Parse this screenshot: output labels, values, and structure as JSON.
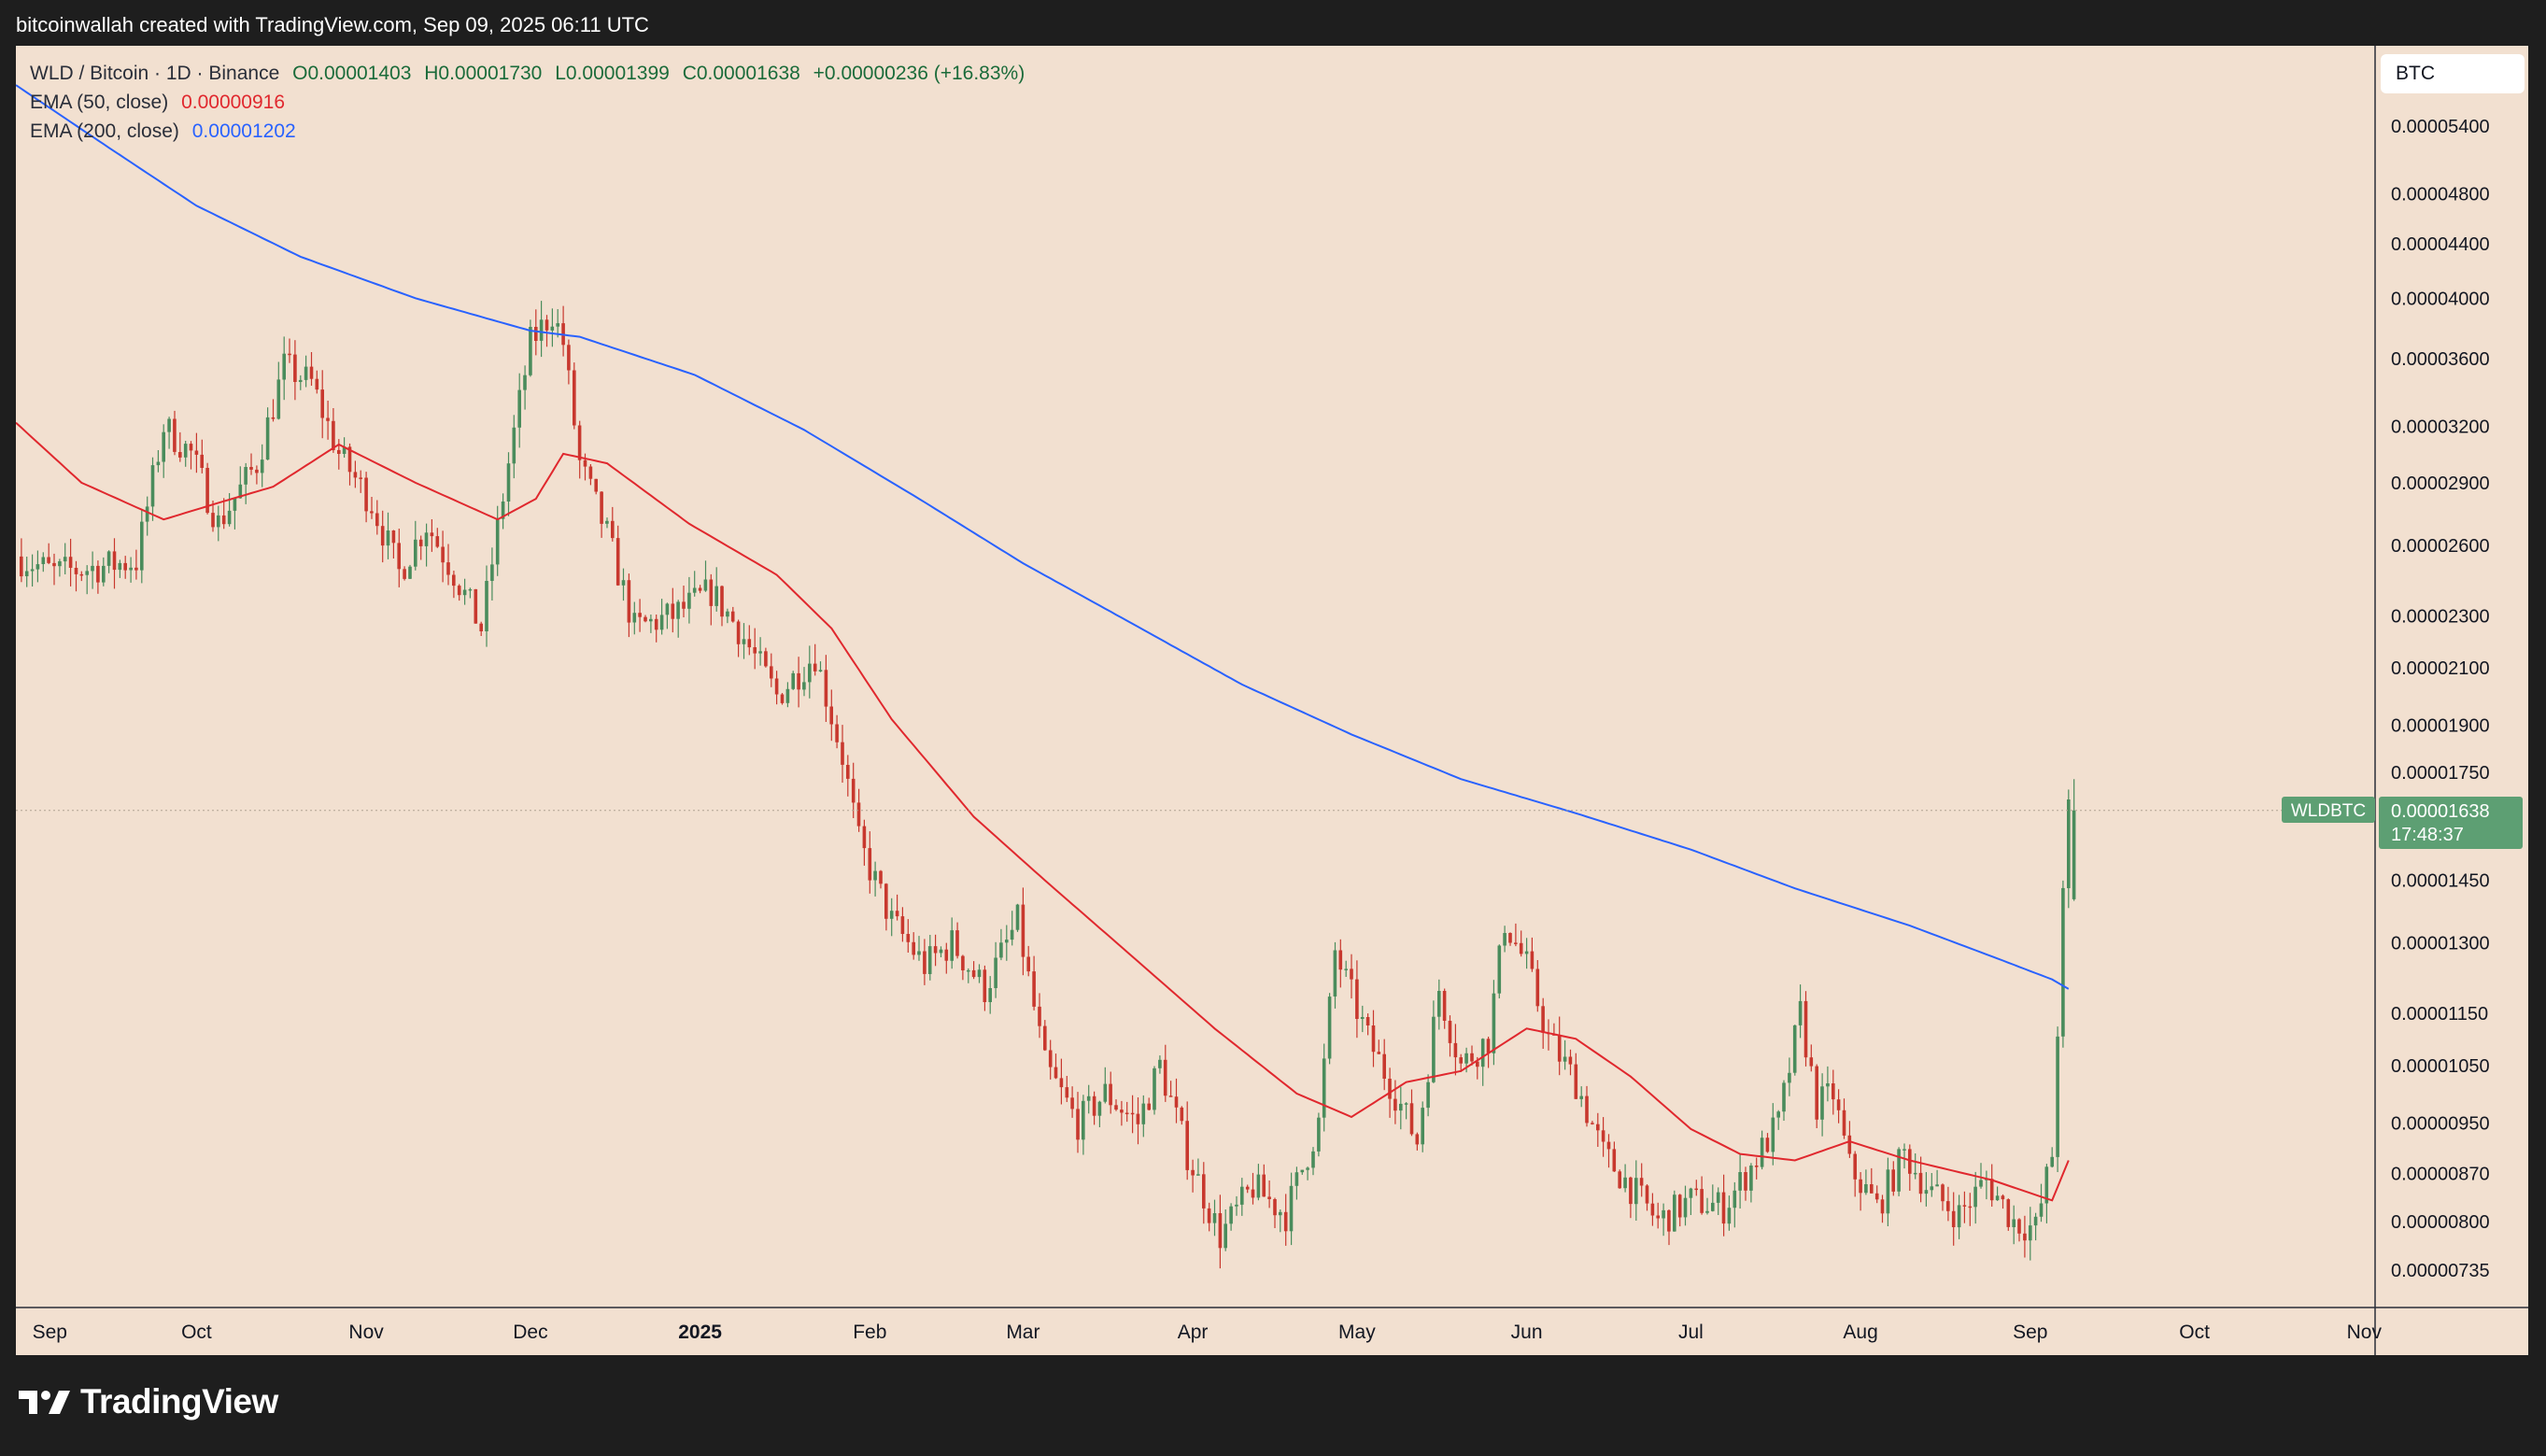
{
  "header": {
    "attribution": "bitcoinwallah created with TradingView.com, Sep 09, 2025 06:11 UTC"
  },
  "legend": {
    "symbol": "WLD / Bitcoin · 1D · Binance",
    "ohlc": {
      "open": "O0.00001403",
      "high": "H0.00001730",
      "low": "L0.00001399",
      "close": "C0.00001638",
      "change": "+0.00000236 (+16.83%)"
    },
    "ema50_label": "EMA (50, close)",
    "ema50_value": "0.00000916",
    "ema200_label": "EMA (200, close)",
    "ema200_value": "0.00001202"
  },
  "price_scale": {
    "currency": "BTC",
    "price_tag": "WLDBTC",
    "last_price": "0.00001638",
    "countdown": "17:48:37"
  },
  "brand": {
    "name": "TradingView"
  },
  "colors": {
    "up": "#4a8c5c",
    "down": "#c8382e",
    "ema50": "#e0282e",
    "ema200": "#2962ff",
    "background": "#f2e0d0",
    "tag": "#5d9f73"
  },
  "chart_data": {
    "type": "candlestick",
    "scale": "log",
    "title": "WLD / Bitcoin · 1D · Binance",
    "y_ticks": [
      "0.00005400",
      "0.00004800",
      "0.00004400",
      "0.00004000",
      "0.00003600",
      "0.00003200",
      "0.00002900",
      "0.00002600",
      "0.00002300",
      "0.00002100",
      "0.00001900",
      "0.00001750",
      "0.00001450",
      "0.00001300",
      "0.00001150",
      "0.00001050",
      "0.00000950",
      "0.00000870",
      "0.00000800",
      "0.00000735"
    ],
    "x_ticks": [
      {
        "label": "Sep",
        "date": "2024-09-01",
        "bold": false
      },
      {
        "label": "Oct",
        "date": "2024-10-01",
        "bold": false
      },
      {
        "label": "Nov",
        "date": "2024-11-01",
        "bold": false
      },
      {
        "label": "Dec",
        "date": "2024-12-01",
        "bold": false
      },
      {
        "label": "2025",
        "date": "2025-01-01",
        "bold": true
      },
      {
        "label": "Feb",
        "date": "2025-02-01",
        "bold": false
      },
      {
        "label": "Mar",
        "date": "2025-03-01",
        "bold": false
      },
      {
        "label": "Apr",
        "date": "2025-04-01",
        "bold": false
      },
      {
        "label": "May",
        "date": "2025-05-01",
        "bold": false
      },
      {
        "label": "Jun",
        "date": "2025-06-01",
        "bold": false
      },
      {
        "label": "Jul",
        "date": "2025-07-01",
        "bold": false
      },
      {
        "label": "Aug",
        "date": "2025-08-01",
        "bold": false
      },
      {
        "label": "Sep",
        "date": "2025-09-01",
        "bold": false
      },
      {
        "label": "Oct",
        "date": "2025-10-01",
        "bold": false
      },
      {
        "label": "Nov",
        "date": "2025-11-01",
        "bold": false
      }
    ],
    "x_range": [
      "2024-08-29",
      "2025-11-03"
    ],
    "y_range": [
      6.8e-06,
      6.2e-06
    ],
    "close_path": [
      [
        "2024-08-29",
        2.55e-05
      ],
      [
        "2024-09-05",
        2.48e-05
      ],
      [
        "2024-09-12",
        2.5e-05
      ],
      [
        "2024-09-20",
        2.53e-05
      ],
      [
        "2024-09-25",
        3.2e-05
      ],
      [
        "2024-09-30",
        3.05e-05
      ],
      [
        "2024-10-05",
        2.7e-05
      ],
      [
        "2024-10-12",
        3e-05
      ],
      [
        "2024-10-17",
        3.55e-05
      ],
      [
        "2024-10-22",
        3.45e-05
      ],
      [
        "2024-10-27",
        3.05e-05
      ],
      [
        "2024-11-02",
        2.8e-05
      ],
      [
        "2024-11-07",
        2.48e-05
      ],
      [
        "2024-11-12",
        2.7e-05
      ],
      [
        "2024-11-17",
        2.48e-05
      ],
      [
        "2024-11-22",
        2.25e-05
      ],
      [
        "2024-11-27",
        3e-05
      ],
      [
        "2024-12-01",
        3.7e-05
      ],
      [
        "2024-12-05",
        3.9e-05
      ],
      [
        "2024-12-07",
        3.7e-05
      ],
      [
        "2024-12-10",
        3e-05
      ],
      [
        "2024-12-15",
        2.65e-05
      ],
      [
        "2024-12-20",
        2.25e-05
      ],
      [
        "2024-12-27",
        2.3e-05
      ],
      [
        "2025-01-03",
        2.4e-05
      ],
      [
        "2025-01-08",
        2.25e-05
      ],
      [
        "2025-01-15",
        2e-05
      ],
      [
        "2025-01-22",
        2.15e-05
      ],
      [
        "2025-01-27",
        1.8e-05
      ],
      [
        "2025-01-30",
        1.55e-05
      ],
      [
        "2025-02-05",
        1.35e-05
      ],
      [
        "2025-02-11",
        1.25e-05
      ],
      [
        "2025-02-16",
        1.3e-05
      ],
      [
        "2025-02-22",
        1.2e-05
      ],
      [
        "2025-02-28",
        1.35e-05
      ],
      [
        "2025-03-05",
        1.05e-05
      ],
      [
        "2025-03-11",
        9.5e-06
      ],
      [
        "2025-03-16",
        1e-05
      ],
      [
        "2025-03-22",
        9.5e-06
      ],
      [
        "2025-03-26",
        1.05e-05
      ],
      [
        "2025-03-31",
        9e-06
      ],
      [
        "2025-04-06",
        7.8e-06
      ],
      [
        "2025-04-12",
        8.5e-06
      ],
      [
        "2025-04-18",
        8.1e-06
      ],
      [
        "2025-04-24",
        9.5e-06
      ],
      [
        "2025-04-27",
        1.28e-05
      ],
      [
        "2025-05-03",
        1.1e-05
      ],
      [
        "2025-05-08",
        1e-05
      ],
      [
        "2025-05-12",
        9.2e-06
      ],
      [
        "2025-05-16",
        1.2e-05
      ],
      [
        "2025-05-20",
        1.05e-05
      ],
      [
        "2025-05-25",
        1.1e-05
      ],
      [
        "2025-05-28",
        1.35e-05
      ],
      [
        "2025-06-01",
        1.25e-05
      ],
      [
        "2025-06-05",
        1.1e-05
      ],
      [
        "2025-06-10",
        1.02e-05
      ],
      [
        "2025-06-15",
        9e-06
      ],
      [
        "2025-06-20",
        8.5e-06
      ],
      [
        "2025-06-25",
        8e-06
      ],
      [
        "2025-07-01",
        8.3e-06
      ],
      [
        "2025-07-07",
        8.2e-06
      ],
      [
        "2025-07-12",
        8.8e-06
      ],
      [
        "2025-07-17",
        9.5e-06
      ],
      [
        "2025-07-21",
        1.15e-05
      ],
      [
        "2025-07-24",
        9.8e-06
      ],
      [
        "2025-07-27",
        1e-05
      ],
      [
        "2025-07-30",
        8.8e-06
      ],
      [
        "2025-08-04",
        8.2e-06
      ],
      [
        "2025-08-09",
        9e-06
      ],
      [
        "2025-08-14",
        8.4e-06
      ],
      [
        "2025-08-19",
        8.1e-06
      ],
      [
        "2025-08-24",
        8.6e-06
      ],
      [
        "2025-08-29",
        8e-06
      ],
      [
        "2025-09-02",
        7.9e-06
      ],
      [
        "2025-09-05",
        9e-06
      ],
      [
        "2025-09-07",
        1.4e-05
      ],
      [
        "2025-09-08",
        1.64e-05
      ]
    ],
    "ema50_path": [
      [
        "2024-08-29",
        3.22e-05
      ],
      [
        "2024-09-10",
        2.9e-05
      ],
      [
        "2024-09-25",
        2.72e-05
      ],
      [
        "2024-10-05",
        2.8e-05
      ],
      [
        "2024-10-15",
        2.88e-05
      ],
      [
        "2024-10-27",
        3.1e-05
      ],
      [
        "2024-11-10",
        2.9e-05
      ],
      [
        "2024-11-25",
        2.72e-05
      ],
      [
        "2024-12-02",
        2.82e-05
      ],
      [
        "2024-12-07",
        3.05e-05
      ],
      [
        "2024-12-15",
        3e-05
      ],
      [
        "2024-12-30",
        2.7e-05
      ],
      [
        "2025-01-15",
        2.47e-05
      ],
      [
        "2025-01-25",
        2.25e-05
      ],
      [
        "2025-02-05",
        1.92e-05
      ],
      [
        "2025-02-20",
        1.62e-05
      ],
      [
        "2025-03-05",
        1.45e-05
      ],
      [
        "2025-03-20",
        1.28e-05
      ],
      [
        "2025-04-05",
        1.12e-05
      ],
      [
        "2025-04-20",
        1e-05
      ],
      [
        "2025-04-30",
        9.6e-06
      ],
      [
        "2025-05-10",
        1.02e-05
      ],
      [
        "2025-05-20",
        1.04e-05
      ],
      [
        "2025-06-01",
        1.12e-05
      ],
      [
        "2025-06-10",
        1.1e-05
      ],
      [
        "2025-06-20",
        1.03e-05
      ],
      [
        "2025-07-01",
        9.4e-06
      ],
      [
        "2025-07-10",
        9e-06
      ],
      [
        "2025-07-20",
        8.9e-06
      ],
      [
        "2025-07-30",
        9.2e-06
      ],
      [
        "2025-08-10",
        8.9e-06
      ],
      [
        "2025-08-25",
        8.6e-06
      ],
      [
        "2025-09-05",
        8.3e-06
      ],
      [
        "2025-09-08",
        8.9e-06
      ]
    ],
    "ema200_path": [
      [
        "2024-08-29",
        5.8e-05
      ],
      [
        "2024-09-15",
        5.2e-05
      ],
      [
        "2024-10-01",
        4.7e-05
      ],
      [
        "2024-10-20",
        4.3e-05
      ],
      [
        "2024-11-10",
        4e-05
      ],
      [
        "2024-12-01",
        3.78e-05
      ],
      [
        "2024-12-10",
        3.74e-05
      ],
      [
        "2024-12-31",
        3.5e-05
      ],
      [
        "2025-01-20",
        3.18e-05
      ],
      [
        "2025-02-10",
        2.82e-05
      ],
      [
        "2025-03-01",
        2.52e-05
      ],
      [
        "2025-03-20",
        2.28e-05
      ],
      [
        "2025-04-10",
        2.04e-05
      ],
      [
        "2025-04-30",
        1.87e-05
      ],
      [
        "2025-05-20",
        1.73e-05
      ],
      [
        "2025-06-10",
        1.63e-05
      ],
      [
        "2025-07-01",
        1.53e-05
      ],
      [
        "2025-07-20",
        1.43e-05
      ],
      [
        "2025-08-10",
        1.34e-05
      ],
      [
        "2025-08-25",
        1.27e-05
      ],
      [
        "2025-09-05",
        1.22e-05
      ],
      [
        "2025-09-08",
        1.2e-05
      ]
    ],
    "last_candle": {
      "date": "2025-09-09",
      "open": 1.403e-05,
      "high": 1.73e-05,
      "low": 1.399e-05,
      "close": 1.638e-05
    }
  }
}
